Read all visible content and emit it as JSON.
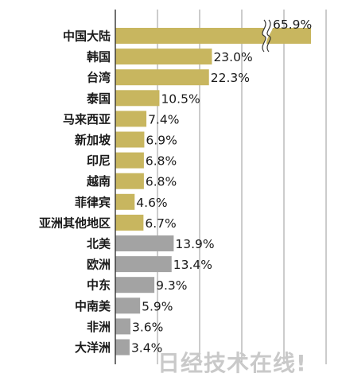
{
  "chart_data": {
    "type": "bar",
    "orientation": "horizontal",
    "title": "",
    "xlabel": "",
    "ylabel": "",
    "grid": true,
    "broken_axis_category": "中国大陆",
    "categories": [
      "中国大陆",
      "韩国",
      "台湾",
      "泰国",
      "马来西亚",
      "新加坡",
      "印尼",
      "越南",
      "菲律宾",
      "亚洲其他地区",
      "北美",
      "欧洲",
      "中东",
      "中南美",
      "非洲",
      "大洋洲"
    ],
    "values": [
      65.9,
      23.0,
      22.3,
      10.5,
      7.4,
      6.9,
      6.8,
      6.8,
      4.6,
      6.7,
      13.9,
      13.4,
      9.3,
      5.9,
      3.6,
      3.4
    ],
    "value_labels": [
      "65.9%",
      "23.0%",
      "22.3%",
      "10.5%",
      "7.4%",
      "6.9%",
      "6.8%",
      "6.8%",
      "4.6%",
      "6.7%",
      "13.9%",
      "13.4%",
      "9.3%",
      "5.9%",
      "3.6%",
      "3.4%"
    ],
    "groups": [
      "asia",
      "asia",
      "asia",
      "asia",
      "asia",
      "asia",
      "asia",
      "asia",
      "asia",
      "asia",
      "other",
      "other",
      "other",
      "other",
      "other",
      "other"
    ],
    "colors": {
      "asia": "#c8b65f",
      "other": "#a3a3a3",
      "grid": "#9a9a9a",
      "axis": "#333333"
    }
  },
  "watermark": "日经技术在线!"
}
